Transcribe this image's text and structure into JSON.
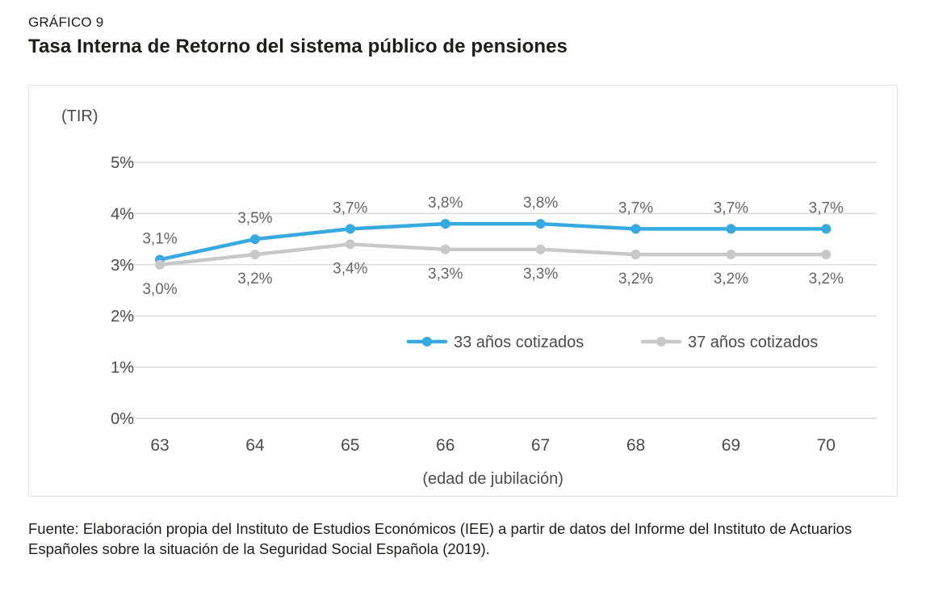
{
  "page": {
    "kicker": "GRÁFICO 9",
    "title": "Tasa Interna de Retorno del sistema público de pensiones",
    "source": "Fuente: Elaboración propia del Instituto de Estudios Económicos (IEE) a partir de datos del Informe del Instituto de Actuarios Españoles sobre la situación de la Seguridad Social Española (2019)."
  },
  "chart_data": {
    "type": "line",
    "title": "Tasa Interna de Retorno del sistema público de pensiones",
    "y_axis_title": "(TIR)",
    "x_axis_title": "(edad de  jubilación)",
    "categories": [
      "63",
      "64",
      "65",
      "66",
      "67",
      "68",
      "69",
      "70"
    ],
    "series": [
      {
        "name": "33 años cotizados",
        "color": "#36a9e1",
        "values": [
          3.1,
          3.5,
          3.7,
          3.8,
          3.8,
          3.7,
          3.7,
          3.7
        ],
        "labels": [
          "3,1%",
          "3,5%",
          "3,7%",
          "3,8%",
          "3,8%",
          "3,7%",
          "3,7%",
          "3,7%"
        ],
        "label_position": "above"
      },
      {
        "name": "37 años cotizados",
        "color": "#c8c8c8",
        "values": [
          3.0,
          3.2,
          3.4,
          3.3,
          3.3,
          3.2,
          3.2,
          3.2
        ],
        "labels": [
          "3,0%",
          "3,2%",
          "3,4%",
          "3,3%",
          "3,3%",
          "3,2%",
          "3,2%",
          "3,2%"
        ],
        "label_position": "below"
      }
    ],
    "y_ticks": [
      "0%",
      "1%",
      "2%",
      "3%",
      "4%",
      "5%"
    ],
    "ylim": [
      0,
      5
    ],
    "grid": true,
    "legend_position": "inside-middle",
    "colors": {
      "gridline": "#dcdcdc",
      "axis_text": "#4b4b4b",
      "data_label_text": "#666666"
    }
  }
}
